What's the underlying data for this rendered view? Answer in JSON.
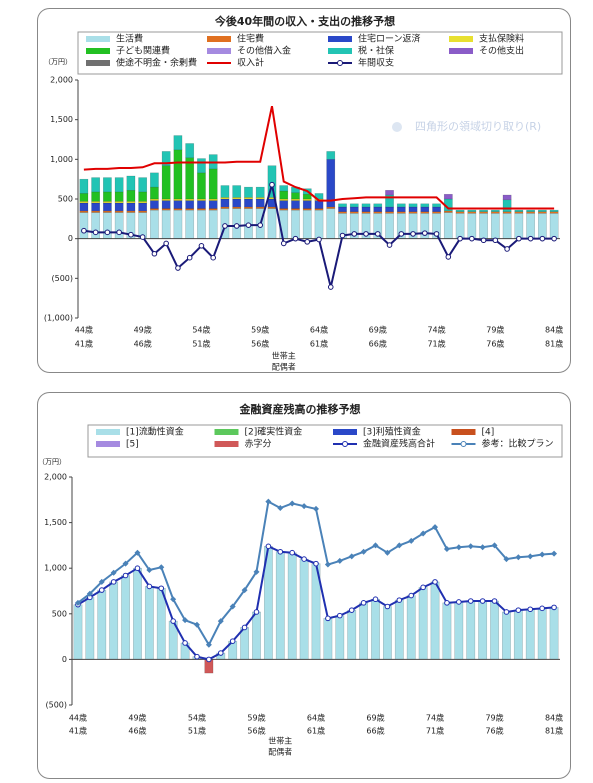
{
  "overlay_text": "四角形の領域切り取り(R)",
  "chart_data": [
    {
      "type": "bar",
      "title": "今後40年間の収入・支出の推移予想",
      "unit_label": "（万円）",
      "x_label_1": "世帯主",
      "x_label_2": "配偶者",
      "stacked": true,
      "grid": false,
      "legend": "top",
      "categories": [
        "44歳",
        null,
        null,
        null,
        null,
        "49歳",
        null,
        null,
        null,
        null,
        "54歳",
        null,
        null,
        null,
        null,
        "59歳",
        null,
        null,
        null,
        null,
        "64歳",
        null,
        null,
        null,
        null,
        "69歳",
        null,
        null,
        null,
        null,
        "74歳",
        null,
        null,
        null,
        null,
        "79歳",
        null,
        null,
        null,
        null,
        "84歳"
      ],
      "categories_spouse": [
        "41歳",
        null,
        null,
        null,
        null,
        "46歳",
        null,
        null,
        null,
        null,
        "51歳",
        null,
        null,
        null,
        null,
        "56歳",
        null,
        null,
        null,
        null,
        "61歳",
        null,
        null,
        null,
        null,
        "66歳",
        null,
        null,
        null,
        null,
        "71歳",
        null,
        null,
        null,
        null,
        "76歳",
        null,
        null,
        null,
        null,
        "81歳"
      ],
      "ylim": [
        -1000,
        2000
      ],
      "yticks": [
        {
          "value": -1000,
          "label": "(1,000)"
        },
        {
          "value": -500,
          "label": "(500)"
        },
        0,
        500,
        {
          "value": 1000,
          "label": "1,000"
        },
        {
          "value": 1500,
          "label": "1,500"
        },
        {
          "value": 2000,
          "label": "2,000"
        }
      ],
      "series": [
        {
          "name": "生活費",
          "kind": "bar",
          "color": "#a9dfe8",
          "values": [
            330,
            330,
            330,
            330,
            330,
            330,
            360,
            360,
            360,
            360,
            360,
            360,
            380,
            380,
            380,
            380,
            380,
            360,
            360,
            360,
            360,
            380,
            320,
            320,
            320,
            320,
            320,
            320,
            320,
            320,
            320,
            330,
            320,
            320,
            320,
            320,
            320,
            320,
            320,
            320,
            320
          ]
        },
        {
          "name": "住宅費",
          "kind": "bar",
          "color": "#e07020",
          "values": [
            20,
            20,
            20,
            20,
            20,
            20,
            20,
            20,
            20,
            20,
            20,
            20,
            20,
            20,
            20,
            20,
            20,
            20,
            20,
            20,
            20,
            20,
            20,
            20,
            20,
            20,
            20,
            20,
            20,
            20,
            20,
            20,
            20,
            20,
            20,
            20,
            20,
            20,
            20,
            20,
            20
          ]
        },
        {
          "name": "住宅ローン返済",
          "kind": "bar",
          "color": "#2a48c8",
          "values": [
            100,
            100,
            100,
            100,
            100,
            100,
            100,
            100,
            100,
            100,
            100,
            100,
            100,
            100,
            100,
            100,
            100,
            100,
            100,
            100,
            100,
            600,
            60,
            60,
            60,
            60,
            60,
            60,
            60,
            60,
            60,
            0,
            0,
            0,
            0,
            0,
            0,
            0,
            0,
            0,
            0
          ]
        },
        {
          "name": "支払保険料",
          "kind": "bar",
          "color": "#e8e030",
          "values": [
            20,
            20,
            20,
            20,
            20,
            20,
            20,
            20,
            20,
            20,
            20,
            20,
            20,
            20,
            20,
            20,
            20,
            20,
            20,
            20,
            20,
            0,
            0,
            0,
            0,
            0,
            0,
            0,
            0,
            0,
            0,
            0,
            0,
            0,
            0,
            0,
            0,
            0,
            0,
            0,
            0
          ]
        },
        {
          "name": "子ども関連費",
          "kind": "bar",
          "color": "#22c022",
          "values": [
            100,
            120,
            120,
            120,
            140,
            120,
            150,
            420,
            620,
            520,
            330,
            380,
            0,
            0,
            0,
            0,
            0,
            100,
            80,
            60,
            0,
            0,
            0,
            0,
            0,
            0,
            0,
            0,
            0,
            0,
            0,
            0,
            0,
            0,
            0,
            0,
            0,
            0,
            0,
            0,
            0
          ]
        },
        {
          "name": "その他借入金",
          "kind": "bar",
          "color": "#a58ae0",
          "values": [
            0,
            0,
            0,
            0,
            0,
            0,
            0,
            0,
            0,
            0,
            0,
            0,
            0,
            0,
            0,
            0,
            0,
            0,
            0,
            0,
            0,
            0,
            0,
            0,
            0,
            0,
            0,
            0,
            0,
            0,
            0,
            0,
            0,
            0,
            0,
            0,
            0,
            0,
            0,
            0,
            0
          ]
        },
        {
          "name": "税・社保",
          "kind": "bar",
          "color": "#22c4b4",
          "values": [
            180,
            180,
            180,
            180,
            180,
            180,
            180,
            180,
            180,
            180,
            180,
            180,
            150,
            150,
            130,
            130,
            400,
            70,
            70,
            70,
            70,
            100,
            40,
            40,
            40,
            40,
            150,
            40,
            40,
            40,
            40,
            150,
            20,
            20,
            20,
            20,
            150,
            20,
            20,
            20,
            20
          ]
        },
        {
          "name": "その他支出",
          "kind": "bar",
          "color": "#8a5cc8",
          "values": [
            0,
            0,
            0,
            0,
            0,
            0,
            0,
            0,
            0,
            0,
            0,
            0,
            0,
            0,
            0,
            0,
            0,
            0,
            0,
            0,
            0,
            0,
            0,
            0,
            0,
            0,
            60,
            0,
            0,
            0,
            0,
            60,
            0,
            0,
            0,
            0,
            60,
            0,
            0,
            0,
            0
          ]
        },
        {
          "name": "使途不明金・余剰費",
          "kind": "bar",
          "color": "#707070",
          "values": [
            0,
            0,
            0,
            0,
            0,
            0,
            0,
            0,
            0,
            0,
            0,
            0,
            0,
            0,
            0,
            0,
            0,
            0,
            0,
            0,
            0,
            0,
            0,
            0,
            0,
            0,
            0,
            0,
            0,
            0,
            0,
            0,
            0,
            0,
            0,
            0,
            0,
            0,
            0,
            0,
            0
          ]
        },
        {
          "name": "収入計",
          "kind": "line",
          "color": "#e00000",
          "values": [
            870,
            880,
            880,
            890,
            890,
            900,
            950,
            950,
            960,
            960,
            960,
            960,
            960,
            970,
            970,
            970,
            1670,
            720,
            650,
            600,
            480,
            480,
            500,
            510,
            520,
            520,
            520,
            520,
            520,
            520,
            520,
            380,
            380,
            380,
            380,
            380,
            380,
            380,
            380,
            380,
            380
          ]
        },
        {
          "name": "年間収支",
          "kind": "line",
          "color": "#1a1a78",
          "marker": "circle-open",
          "values": [
            100,
            80,
            80,
            80,
            50,
            20,
            -190,
            -60,
            -370,
            -240,
            -90,
            -240,
            160,
            160,
            170,
            170,
            680,
            -60,
            0,
            -40,
            -10,
            -610,
            40,
            60,
            60,
            60,
            -80,
            60,
            60,
            70,
            60,
            -230,
            0,
            0,
            -20,
            -20,
            -130,
            0,
            0,
            0,
            0
          ]
        }
      ]
    },
    {
      "type": "bar",
      "title": "金融資産残高の推移予想",
      "unit_label": "（万円）",
      "x_label_1": "世帯主",
      "x_label_2": "配偶者",
      "stacked": true,
      "grid": false,
      "legend": "top",
      "categories": [
        "44歳",
        null,
        null,
        null,
        null,
        "49歳",
        null,
        null,
        null,
        null,
        "54歳",
        null,
        null,
        null,
        null,
        "59歳",
        null,
        null,
        null,
        null,
        "64歳",
        null,
        null,
        null,
        null,
        "69歳",
        null,
        null,
        null,
        null,
        "74歳",
        null,
        null,
        null,
        null,
        "79歳",
        null,
        null,
        null,
        null,
        "84歳"
      ],
      "categories_spouse": [
        "41歳",
        null,
        null,
        null,
        null,
        "46歳",
        null,
        null,
        null,
        null,
        "51歳",
        null,
        null,
        null,
        null,
        "56歳",
        null,
        null,
        null,
        null,
        "61歳",
        null,
        null,
        null,
        null,
        "66歳",
        null,
        null,
        null,
        null,
        "71歳",
        null,
        null,
        null,
        null,
        "76歳",
        null,
        null,
        null,
        null,
        "81歳"
      ],
      "ylim": [
        -500,
        2000
      ],
      "yticks": [
        {
          "value": -500,
          "label": "(500)"
        },
        0,
        500,
        {
          "value": 1000,
          "label": "1,000"
        },
        {
          "value": 1500,
          "label": "1,500"
        },
        {
          "value": 2000,
          "label": "2,000"
        }
      ],
      "series": [
        {
          "name": "[1]流動性資金",
          "kind": "bar",
          "color": "#a9dfe8",
          "values": [
            600,
            680,
            760,
            850,
            920,
            1000,
            800,
            780,
            420,
            180,
            30,
            0,
            70,
            200,
            350,
            520,
            1240,
            1180,
            1170,
            1100,
            1050,
            450,
            480,
            540,
            620,
            660,
            580,
            650,
            700,
            790,
            850,
            620,
            630,
            640,
            640,
            640,
            520,
            540,
            550,
            560,
            570
          ]
        },
        {
          "name": "[2]確実性資金",
          "kind": "bar",
          "color": "#5cc85c",
          "values": [
            0,
            0,
            0,
            0,
            0,
            0,
            0,
            0,
            0,
            0,
            0,
            0,
            0,
            0,
            0,
            0,
            0,
            0,
            0,
            0,
            0,
            0,
            0,
            0,
            0,
            0,
            0,
            0,
            0,
            0,
            0,
            0,
            0,
            0,
            0,
            0,
            0,
            0,
            0,
            0,
            0
          ]
        },
        {
          "name": "[3]利殖性資金",
          "kind": "bar",
          "color": "#2a48c8",
          "values": [
            0,
            0,
            0,
            0,
            0,
            0,
            0,
            0,
            0,
            0,
            0,
            0,
            0,
            0,
            0,
            0,
            0,
            0,
            0,
            0,
            0,
            0,
            0,
            0,
            0,
            0,
            0,
            0,
            0,
            0,
            0,
            0,
            0,
            0,
            0,
            0,
            0,
            0,
            0,
            0,
            0
          ]
        },
        {
          "name": "[4]",
          "kind": "bar",
          "color": "#c8501e",
          "values": [
            0,
            0,
            0,
            0,
            0,
            0,
            0,
            0,
            0,
            0,
            0,
            0,
            0,
            0,
            0,
            0,
            0,
            0,
            0,
            0,
            0,
            0,
            0,
            0,
            0,
            0,
            0,
            0,
            0,
            0,
            0,
            0,
            0,
            0,
            0,
            0,
            0,
            0,
            0,
            0,
            0
          ]
        },
        {
          "name": "[5]",
          "kind": "bar",
          "color": "#a58ae0",
          "values": [
            0,
            0,
            0,
            0,
            0,
            0,
            0,
            0,
            0,
            0,
            0,
            0,
            0,
            0,
            0,
            0,
            0,
            0,
            0,
            0,
            0,
            0,
            0,
            0,
            0,
            0,
            0,
            0,
            0,
            0,
            0,
            0,
            0,
            0,
            0,
            0,
            0,
            0,
            0,
            0,
            0
          ]
        },
        {
          "name": "赤字分",
          "kind": "bar",
          "color": "#d05858",
          "values": [
            0,
            0,
            0,
            0,
            0,
            0,
            0,
            0,
            0,
            0,
            0,
            -150,
            0,
            0,
            0,
            0,
            0,
            0,
            0,
            0,
            0,
            0,
            0,
            0,
            0,
            0,
            0,
            0,
            0,
            0,
            0,
            0,
            0,
            0,
            0,
            0,
            0,
            0,
            0,
            0,
            0
          ]
        },
        {
          "name": "金融資産残高合計",
          "kind": "line",
          "color": "#2030b0",
          "marker": "circle-open",
          "values": [
            600,
            680,
            760,
            850,
            920,
            1000,
            800,
            780,
            420,
            180,
            30,
            0,
            70,
            200,
            350,
            520,
            1240,
            1180,
            1170,
            1100,
            1050,
            450,
            480,
            540,
            620,
            660,
            580,
            650,
            700,
            790,
            850,
            620,
            630,
            640,
            640,
            640,
            520,
            540,
            550,
            560,
            570
          ]
        },
        {
          "name": "参考：比較プラン",
          "kind": "line",
          "color": "#4a82b8",
          "marker": "diamond",
          "values": [
            620,
            720,
            850,
            950,
            1050,
            1170,
            980,
            1010,
            660,
            430,
            380,
            160,
            420,
            580,
            760,
            960,
            1730,
            1660,
            1710,
            1680,
            1650,
            1040,
            1080,
            1130,
            1180,
            1250,
            1170,
            1250,
            1300,
            1380,
            1450,
            1210,
            1230,
            1240,
            1230,
            1250,
            1100,
            1120,
            1130,
            1150,
            1160
          ]
        }
      ]
    }
  ]
}
